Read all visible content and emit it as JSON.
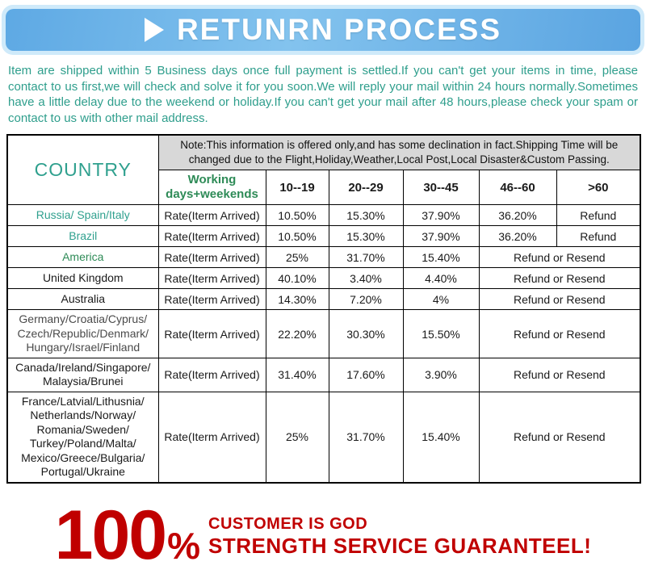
{
  "banner": {
    "title": "RETUNRN PROCESS",
    "accent_color": "#5ea9e4",
    "strip_color": "#cfeafa"
  },
  "intro": "Item are shipped within 5 Business days once full payment is settled.If you can't get your items in time, please contact to us first,we will check and solve it for you soon.We will reply your mail within 24 hours normally.Sometimes have a little delay due to the weekend or holiday.If you can't get your mail after 48 hours,please check your spam or contact to us with other mail address.",
  "table": {
    "country_header": "COUNTRY",
    "note": "Note:This information is offered only,and has some declination in fact.Shipping Time will be changed due to the Flight,Holiday,Weather,Local Post,Local Disaster&Custom Passing.",
    "working_header": "Working days+weekends",
    "time_cols": [
      "10--19",
      "20--29",
      "30--45",
      "46--60",
      ">60"
    ],
    "rows": [
      {
        "country": "Russia/ Spain/Italy",
        "color": "#2fa08e",
        "rate": "Rate(Iterm Arrived)",
        "cells": [
          {
            "text": "10.50%"
          },
          {
            "text": "15.30%"
          },
          {
            "text": "37.90%"
          },
          {
            "text": "36.20%"
          },
          {
            "text": "Refund"
          }
        ]
      },
      {
        "country": "Brazil",
        "color": "#2fa08e",
        "rate": "Rate(Iterm Arrived)",
        "cells": [
          {
            "text": "10.50%"
          },
          {
            "text": "15.30%"
          },
          {
            "text": "37.90%"
          },
          {
            "text": "36.20%"
          },
          {
            "text": "Refund"
          }
        ]
      },
      {
        "country": "America",
        "color": "#2e8b57",
        "rate": "Rate(Iterm Arrived)",
        "cells": [
          {
            "text": "25%"
          },
          {
            "text": "31.70%"
          },
          {
            "text": "15.40%"
          },
          {
            "text": "Refund or Resend",
            "colspan": 2
          }
        ]
      },
      {
        "country": "United Kingdom",
        "color": "#1a1a1a",
        "rate": "Rate(Iterm Arrived)",
        "cells": [
          {
            "text": "40.10%"
          },
          {
            "text": "3.40%"
          },
          {
            "text": "4.40%"
          },
          {
            "text": "Refund or Resend",
            "colspan": 2
          }
        ]
      },
      {
        "country": "Australia",
        "color": "#1a1a1a",
        "rate": "Rate(Iterm Arrived)",
        "cells": [
          {
            "text": "14.30%"
          },
          {
            "text": "7.20%"
          },
          {
            "text": "4%"
          },
          {
            "text": "Refund or Resend",
            "colspan": 2
          }
        ]
      },
      {
        "country": "Germany/Croatia/Cyprus/ Czech/Republic/Denmark/ Hungary/Israel/Finland",
        "color": "#4a4a4a",
        "rate": "Rate(Iterm Arrived)",
        "cells": [
          {
            "text": "22.20%"
          },
          {
            "text": "30.30%"
          },
          {
            "text": "15.50%"
          },
          {
            "text": "Refund or Resend",
            "colspan": 2
          }
        ]
      },
      {
        "country": "Canada/Ireland/Singapore/ Malaysia/Brunei",
        "color": "#1a1a1a",
        "rate": "Rate(Iterm Arrived)",
        "cells": [
          {
            "text": "31.40%"
          },
          {
            "text": "17.60%"
          },
          {
            "text": "3.90%"
          },
          {
            "text": "Refund or Resend",
            "colspan": 2
          }
        ]
      },
      {
        "country": "France/Latvial/Lithusnia/ Netherlands/Norway/ Romania/Sweden/ Turkey/Poland/Malta/ Mexico/Greece/Bulgaria/ Portugal/Ukraine",
        "color": "#1a1a1a",
        "rate": "Rate(Iterm Arrived)",
        "cells": [
          {
            "text": "25%"
          },
          {
            "text": "31.70%"
          },
          {
            "text": "15.40%"
          },
          {
            "text": "Refund or Resend",
            "colspan": 2
          }
        ]
      }
    ]
  },
  "footer": {
    "number": "100",
    "percent": "%",
    "line1": "CUSTOMER IS GOD",
    "line2": "STRENGTH SERVICE GUARANTEEL!",
    "color": "#c00000"
  }
}
